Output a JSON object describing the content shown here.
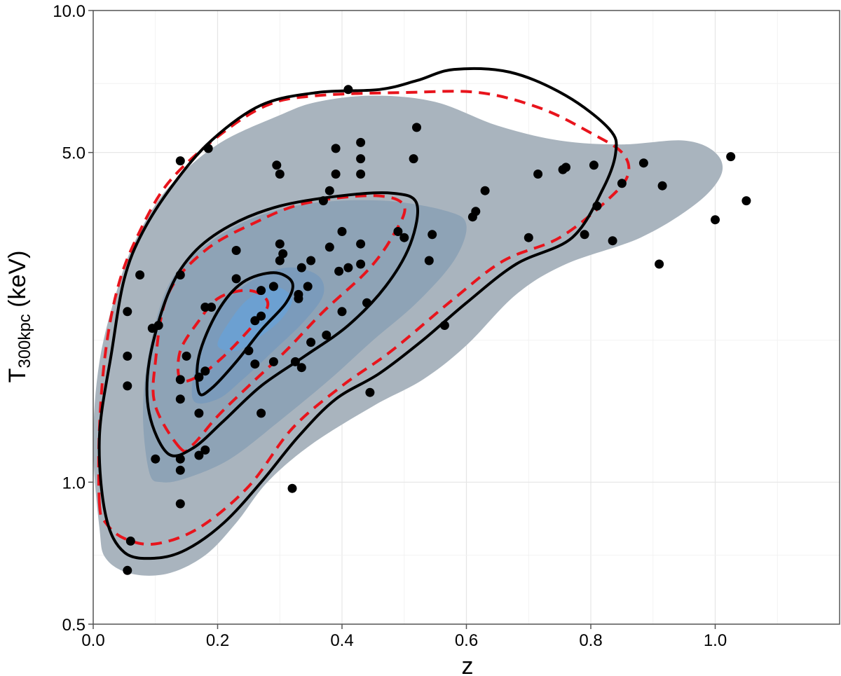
{
  "chart_data": {
    "type": "scatter",
    "xlabel": "z",
    "ylabel": {
      "main": "T",
      "subscript": "300kpc",
      "suffix": " (keV)"
    },
    "xlim": [
      0.0,
      1.2
    ],
    "ylim": [
      0.5,
      10.0
    ],
    "yscale": "log",
    "grid": true,
    "x_ticks": [
      0.0,
      0.2,
      0.4,
      0.6,
      0.8,
      1.0
    ],
    "x_tick_labels": [
      "0.0",
      "0.2",
      "0.4",
      "0.6",
      "0.8",
      "1.0"
    ],
    "y_ticks": [
      0.5,
      1.0,
      5.0,
      10.0
    ],
    "y_tick_labels": [
      "0.5",
      "1.0",
      "5.0",
      "10.0"
    ],
    "colors": {
      "density_outer": "#a9b4be",
      "density_mid": "#8ea3b6",
      "density_inner": "#7b9bbb",
      "density_core": "#6ca0d1",
      "solid_contour": "#000000",
      "dashed_contour": "#e8141c",
      "points": "#000000",
      "frame": "#555555",
      "grid": "#e5e5e5"
    },
    "density_regions": [
      {
        "name": "outer",
        "points": [
          [
            0.01,
            0.8
          ],
          [
            0.0,
            1.2
          ],
          [
            0.01,
            1.8
          ],
          [
            0.04,
            2.6
          ],
          [
            0.07,
            3.3
          ],
          [
            0.12,
            4.2
          ],
          [
            0.2,
            5.2
          ],
          [
            0.3,
            6.0
          ],
          [
            0.36,
            6.4
          ],
          [
            0.45,
            6.6
          ],
          [
            0.55,
            6.4
          ],
          [
            0.65,
            5.7
          ],
          [
            0.75,
            5.3
          ],
          [
            0.85,
            5.2
          ],
          [
            0.95,
            5.3
          ],
          [
            1.0,
            5.0
          ],
          [
            1.01,
            4.5
          ],
          [
            0.97,
            3.9
          ],
          [
            0.88,
            3.3
          ],
          [
            0.76,
            2.9
          ],
          [
            0.68,
            2.5
          ],
          [
            0.6,
            1.95
          ],
          [
            0.53,
            1.65
          ],
          [
            0.45,
            1.45
          ],
          [
            0.35,
            1.2
          ],
          [
            0.28,
            1.0
          ],
          [
            0.23,
            0.82
          ],
          [
            0.18,
            0.7
          ],
          [
            0.12,
            0.64
          ],
          [
            0.06,
            0.64
          ],
          [
            0.02,
            0.69
          ]
        ]
      },
      {
        "name": "mid",
        "points": [
          [
            0.09,
            1.05
          ],
          [
            0.08,
            1.4
          ],
          [
            0.09,
            1.9
          ],
          [
            0.12,
            2.6
          ],
          [
            0.17,
            3.1
          ],
          [
            0.25,
            3.6
          ],
          [
            0.35,
            3.9
          ],
          [
            0.47,
            3.95
          ],
          [
            0.57,
            3.75
          ],
          [
            0.6,
            3.5
          ],
          [
            0.58,
            2.95
          ],
          [
            0.52,
            2.4
          ],
          [
            0.45,
            2.0
          ],
          [
            0.38,
            1.65
          ],
          [
            0.3,
            1.35
          ],
          [
            0.22,
            1.12
          ],
          [
            0.15,
            1.02
          ],
          [
            0.11,
            1.0
          ]
        ]
      },
      {
        "name": "inner",
        "points": [
          [
            0.16,
            1.5
          ],
          [
            0.17,
            1.9
          ],
          [
            0.2,
            2.3
          ],
          [
            0.25,
            2.65
          ],
          [
            0.31,
            2.85
          ],
          [
            0.36,
            2.75
          ],
          [
            0.37,
            2.5
          ],
          [
            0.34,
            2.2
          ],
          [
            0.29,
            1.9
          ],
          [
            0.24,
            1.65
          ],
          [
            0.2,
            1.5
          ]
        ]
      },
      {
        "name": "core",
        "points": [
          [
            0.2,
            1.95
          ],
          [
            0.22,
            2.2
          ],
          [
            0.25,
            2.45
          ],
          [
            0.29,
            2.6
          ],
          [
            0.32,
            2.45
          ],
          [
            0.3,
            2.2
          ],
          [
            0.26,
            2.0
          ],
          [
            0.23,
            1.9
          ]
        ]
      }
    ],
    "solid_contours": [
      [
        [
          0.02,
          0.85
        ],
        [
          0.01,
          1.25
        ],
        [
          0.03,
          1.9
        ],
        [
          0.05,
          2.7
        ],
        [
          0.08,
          3.4
        ],
        [
          0.13,
          4.3
        ],
        [
          0.19,
          5.3
        ],
        [
          0.27,
          6.3
        ],
        [
          0.36,
          6.7
        ],
        [
          0.46,
          6.8
        ],
        [
          0.52,
          7.1
        ],
        [
          0.58,
          7.5
        ],
        [
          0.67,
          7.4
        ],
        [
          0.76,
          6.6
        ],
        [
          0.83,
          5.6
        ],
        [
          0.84,
          5.0
        ],
        [
          0.82,
          4.2
        ],
        [
          0.77,
          3.3
        ],
        [
          0.68,
          2.9
        ],
        [
          0.6,
          2.4
        ],
        [
          0.53,
          2.0
        ],
        [
          0.46,
          1.7
        ],
        [
          0.39,
          1.5
        ],
        [
          0.33,
          1.25
        ],
        [
          0.27,
          1.0
        ],
        [
          0.21,
          0.82
        ],
        [
          0.15,
          0.72
        ],
        [
          0.1,
          0.69
        ],
        [
          0.05,
          0.71
        ]
      ],
      [
        [
          0.12,
          1.15
        ],
        [
          0.09,
          1.4
        ],
        [
          0.09,
          1.8
        ],
        [
          0.12,
          2.5
        ],
        [
          0.16,
          3.05
        ],
        [
          0.22,
          3.5
        ],
        [
          0.3,
          3.85
        ],
        [
          0.4,
          4.05
        ],
        [
          0.48,
          4.1
        ],
        [
          0.52,
          3.9
        ],
        [
          0.51,
          3.2
        ],
        [
          0.47,
          2.6
        ],
        [
          0.41,
          2.15
        ],
        [
          0.34,
          1.85
        ],
        [
          0.27,
          1.6
        ],
        [
          0.21,
          1.35
        ],
        [
          0.16,
          1.18
        ]
      ],
      [
        [
          0.17,
          1.55
        ],
        [
          0.17,
          1.85
        ],
        [
          0.2,
          2.3
        ],
        [
          0.24,
          2.65
        ],
        [
          0.29,
          2.78
        ],
        [
          0.32,
          2.65
        ],
        [
          0.31,
          2.4
        ],
        [
          0.27,
          2.1
        ],
        [
          0.23,
          1.8
        ],
        [
          0.19,
          1.58
        ]
      ]
    ],
    "dashed_contours": [
      [
        [
          0.01,
          0.9
        ],
        [
          0.01,
          1.3
        ],
        [
          0.02,
          1.9
        ],
        [
          0.04,
          2.6
        ],
        [
          0.07,
          3.3
        ],
        [
          0.12,
          4.3
        ],
        [
          0.2,
          5.4
        ],
        [
          0.28,
          6.3
        ],
        [
          0.36,
          6.6
        ],
        [
          0.5,
          6.7
        ],
        [
          0.62,
          6.7
        ],
        [
          0.72,
          6.2
        ],
        [
          0.8,
          5.5
        ],
        [
          0.85,
          5.0
        ],
        [
          0.86,
          4.5
        ],
        [
          0.83,
          4.0
        ],
        [
          0.75,
          3.3
        ],
        [
          0.66,
          2.95
        ],
        [
          0.58,
          2.45
        ],
        [
          0.48,
          1.9
        ],
        [
          0.4,
          1.6
        ],
        [
          0.32,
          1.3
        ],
        [
          0.25,
          0.98
        ],
        [
          0.17,
          0.8
        ],
        [
          0.1,
          0.74
        ],
        [
          0.05,
          0.76
        ],
        [
          0.02,
          0.82
        ]
      ],
      [
        [
          0.14,
          1.18
        ],
        [
          0.1,
          1.45
        ],
        [
          0.1,
          1.8
        ],
        [
          0.12,
          2.5
        ],
        [
          0.18,
          3.1
        ],
        [
          0.26,
          3.55
        ],
        [
          0.34,
          3.9
        ],
        [
          0.45,
          4.05
        ],
        [
          0.5,
          3.85
        ],
        [
          0.48,
          3.3
        ],
        [
          0.44,
          2.8
        ],
        [
          0.37,
          2.3
        ],
        [
          0.31,
          1.9
        ],
        [
          0.25,
          1.6
        ],
        [
          0.2,
          1.38
        ],
        [
          0.16,
          1.2
        ]
      ],
      [
        [
          0.14,
          1.65
        ],
        [
          0.14,
          1.9
        ],
        [
          0.17,
          2.2
        ],
        [
          0.2,
          2.45
        ],
        [
          0.24,
          2.55
        ],
        [
          0.27,
          2.5
        ],
        [
          0.28,
          2.35
        ],
        [
          0.25,
          2.1
        ],
        [
          0.21,
          1.85
        ],
        [
          0.17,
          1.68
        ]
      ]
    ],
    "points": [
      [
        0.055,
        0.65
      ],
      [
        0.06,
        0.75
      ],
      [
        0.055,
        1.6
      ],
      [
        0.055,
        1.85
      ],
      [
        0.055,
        2.3
      ],
      [
        0.075,
        2.75
      ],
      [
        0.095,
        2.12
      ],
      [
        0.105,
        2.15
      ],
      [
        0.1,
        1.12
      ],
      [
        0.14,
        1.06
      ],
      [
        0.14,
        1.12
      ],
      [
        0.14,
        0.9
      ],
      [
        0.14,
        1.5
      ],
      [
        0.14,
        1.65
      ],
      [
        0.14,
        2.75
      ],
      [
        0.14,
        4.8
      ],
      [
        0.15,
        1.85
      ],
      [
        0.17,
        1.14
      ],
      [
        0.17,
        1.4
      ],
      [
        0.17,
        1.67
      ],
      [
        0.18,
        1.17
      ],
      [
        0.18,
        2.35
      ],
      [
        0.18,
        1.72
      ],
      [
        0.19,
        2.35
      ],
      [
        0.185,
        5.1
      ],
      [
        0.23,
        2.7
      ],
      [
        0.23,
        3.1
      ],
      [
        0.25,
        1.9
      ],
      [
        0.26,
        1.78
      ],
      [
        0.26,
        2.2
      ],
      [
        0.27,
        2.25
      ],
      [
        0.27,
        2.55
      ],
      [
        0.27,
        1.4
      ],
      [
        0.29,
        2.6
      ],
      [
        0.29,
        1.8
      ],
      [
        0.295,
        4.7
      ],
      [
        0.3,
        4.5
      ],
      [
        0.3,
        2.95
      ],
      [
        0.3,
        3.2
      ],
      [
        0.305,
        3.05
      ],
      [
        0.32,
        0.97
      ],
      [
        0.325,
        1.8
      ],
      [
        0.33,
        2.45
      ],
      [
        0.33,
        2.5
      ],
      [
        0.335,
        2.85
      ],
      [
        0.335,
        1.75
      ],
      [
        0.345,
        2.6
      ],
      [
        0.35,
        2.95
      ],
      [
        0.35,
        1.98
      ],
      [
        0.37,
        3.95
      ],
      [
        0.38,
        3.15
      ],
      [
        0.38,
        4.15
      ],
      [
        0.375,
        2.05
      ],
      [
        0.39,
        5.1
      ],
      [
        0.39,
        4.5
      ],
      [
        0.395,
        2.8
      ],
      [
        0.4,
        3.4
      ],
      [
        0.4,
        2.3
      ],
      [
        0.41,
        6.8
      ],
      [
        0.41,
        2.85
      ],
      [
        0.43,
        5.25
      ],
      [
        0.43,
        4.85
      ],
      [
        0.43,
        4.5
      ],
      [
        0.43,
        3.2
      ],
      [
        0.43,
        2.9
      ],
      [
        0.44,
        2.4
      ],
      [
        0.445,
        1.55
      ],
      [
        0.49,
        3.4
      ],
      [
        0.5,
        3.3
      ],
      [
        0.515,
        4.85
      ],
      [
        0.52,
        5.65
      ],
      [
        0.54,
        2.95
      ],
      [
        0.545,
        3.35
      ],
      [
        0.565,
        2.15
      ],
      [
        0.61,
        3.65
      ],
      [
        0.615,
        3.75
      ],
      [
        0.63,
        4.15
      ],
      [
        0.7,
        3.3
      ],
      [
        0.715,
        4.5
      ],
      [
        0.755,
        4.6
      ],
      [
        0.76,
        4.65
      ],
      [
        0.79,
        3.35
      ],
      [
        0.805,
        4.7
      ],
      [
        0.81,
        3.85
      ],
      [
        0.835,
        3.25
      ],
      [
        0.85,
        4.3
      ],
      [
        0.885,
        4.75
      ],
      [
        0.91,
        2.9
      ],
      [
        0.915,
        4.25
      ],
      [
        1.0,
        3.6
      ],
      [
        1.025,
        4.9
      ],
      [
        1.05,
        3.95
      ]
    ]
  }
}
